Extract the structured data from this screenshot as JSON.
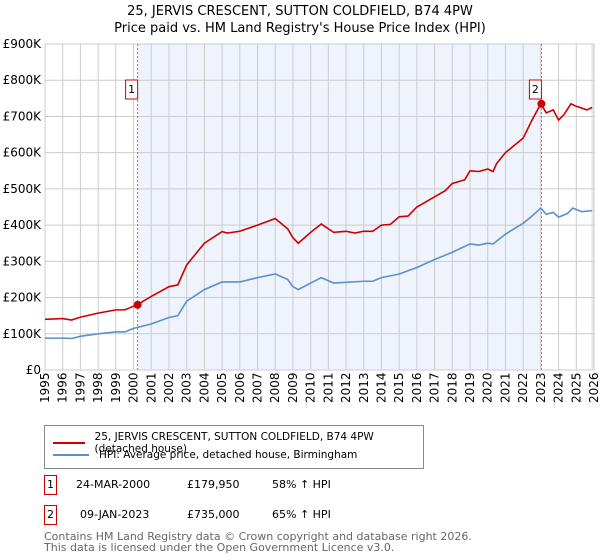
{
  "chart_data": {
    "type": "line",
    "title": "25, JERVIS CRESCENT, SUTTON COLDFIELD, B74 4PW",
    "subtitle": "Price paid vs. HM Land Registry's House Price Index (HPI)",
    "xlim": [
      1995,
      2026
    ],
    "ylim": [
      0,
      900000
    ],
    "x_ticks": [
      "1995",
      "1996",
      "1997",
      "1998",
      "1999",
      "2000",
      "2001",
      "2002",
      "2003",
      "2004",
      "2005",
      "2006",
      "2007",
      "2008",
      "2009",
      "2010",
      "2011",
      "2012",
      "2013",
      "2014",
      "2015",
      "2016",
      "2017",
      "2018",
      "2019",
      "2020",
      "2021",
      "2022",
      "2023",
      "2024",
      "2025",
      "2026"
    ],
    "y_ticks": [
      {
        "v": 0,
        "l": "£0"
      },
      {
        "v": 100000,
        "l": "£100K"
      },
      {
        "v": 200000,
        "l": "£200K"
      },
      {
        "v": 300000,
        "l": "£300K"
      },
      {
        "v": 400000,
        "l": "£400K"
      },
      {
        "v": 500000,
        "l": "£500K"
      },
      {
        "v": 600000,
        "l": "£600K"
      },
      {
        "v": 700000,
        "l": "£700K"
      },
      {
        "v": 800000,
        "l": "£800K"
      },
      {
        "v": 900000,
        "l": "£900K"
      }
    ],
    "grid": true,
    "series": [
      {
        "name": "25, JERVIS CRESCENT, SUTTON COLDFIELD, B74 4PW (detached house)",
        "color": "#cc0000",
        "x": [
          1995,
          1996,
          1996.5,
          1997,
          1998,
          1999,
          1999.5,
          2000.2,
          2001,
          2002,
          2002.5,
          2003,
          2004,
          2005,
          2005.3,
          2006,
          2007,
          2008,
          2008.7,
          2009,
          2009.3,
          2010,
          2010.6,
          2011.3,
          2012,
          2012.5,
          2013,
          2013.5,
          2014,
          2014.5,
          2015,
          2015.5,
          2016,
          2017,
          2017.6,
          2018,
          2018.7,
          2019,
          2019.5,
          2020,
          2020.3,
          2020.5,
          2021,
          2021.5,
          2022,
          2022.5,
          2023.0,
          2023.3,
          2023.7,
          2024,
          2024.3,
          2024.7,
          2025,
          2025.6,
          2025.9
        ],
        "y": [
          140000,
          142000,
          138000,
          146000,
          157000,
          166000,
          166000,
          179950,
          203000,
          230000,
          235000,
          290000,
          350000,
          382000,
          378000,
          383000,
          400000,
          418000,
          390000,
          365000,
          350000,
          380000,
          403000,
          380000,
          383000,
          378000,
          383000,
          383000,
          400000,
          402000,
          423000,
          425000,
          450000,
          478000,
          495000,
          515000,
          525000,
          550000,
          548000,
          555000,
          548000,
          570000,
          600000,
          620000,
          640000,
          690000,
          735000,
          710000,
          718000,
          690000,
          705000,
          735000,
          728000,
          718000,
          725000
        ]
      },
      {
        "name": "HPI: Average price, detached house, Birmingham",
        "color": "#5b8fd0",
        "x": [
          1995,
          1996,
          1996.5,
          1997,
          1998,
          1999,
          1999.5,
          2000,
          2001,
          2002,
          2002.5,
          2003,
          2004,
          2005,
          2006,
          2007,
          2008,
          2008.7,
          2009,
          2009.3,
          2010,
          2010.6,
          2011.3,
          2012,
          2013,
          2013.5,
          2014,
          2015,
          2016,
          2017,
          2018,
          2019,
          2019.5,
          2020,
          2020.3,
          2021,
          2021.5,
          2022,
          2022.5,
          2023.0,
          2023.3,
          2023.7,
          2024,
          2024.5,
          2024.8,
          2025.3,
          2025.9
        ],
        "y": [
          88000,
          88000,
          87000,
          93000,
          100000,
          105000,
          105000,
          115000,
          127000,
          145000,
          150000,
          190000,
          222000,
          243000,
          243000,
          255000,
          265000,
          250000,
          230000,
          222000,
          240000,
          255000,
          240000,
          242000,
          245000,
          245000,
          255000,
          265000,
          283000,
          305000,
          325000,
          348000,
          345000,
          350000,
          348000,
          375000,
          390000,
          405000,
          425000,
          447000,
          430000,
          435000,
          422000,
          432000,
          447000,
          437000,
          440000
        ]
      }
    ],
    "markers": [
      {
        "id": "1",
        "x": 2000.23,
        "y": 179950
      },
      {
        "id": "2",
        "x": 2023.03,
        "y": 735000
      }
    ]
  },
  "legend": [
    {
      "label": "25, JERVIS CRESCENT, SUTTON COLDFIELD, B74 4PW (detached house)",
      "color": "#cc0000"
    },
    {
      "label": "HPI: Average price, detached house, Birmingham",
      "color": "#5b8fd0"
    }
  ],
  "transactions": [
    {
      "id": "1",
      "date": "24-MAR-2000",
      "price": "£179,950",
      "hpi": "58% ↑ HPI"
    },
    {
      "id": "2",
      "date": "09-JAN-2023",
      "price": "£735,000",
      "hpi": "65% ↑ HPI"
    }
  ],
  "footer": {
    "line1": "Contains HM Land Registry data © Crown copyright and database right 2026.",
    "line2": "This data is licensed under the Open Government Licence v3.0."
  }
}
